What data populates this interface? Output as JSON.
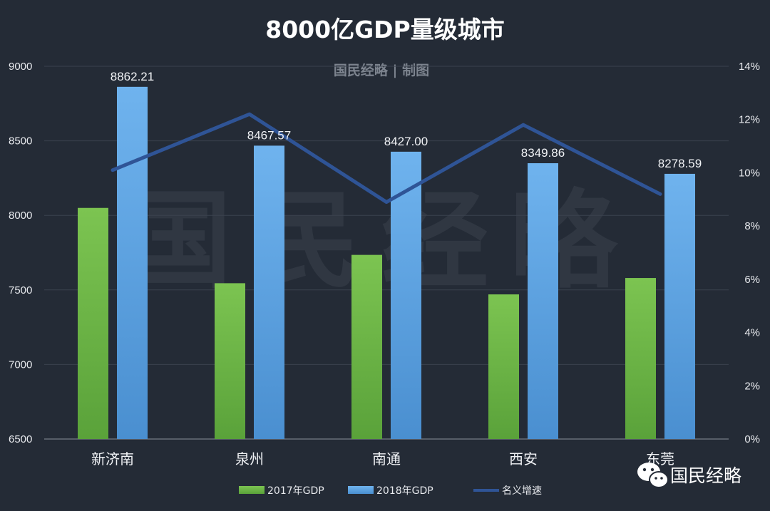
{
  "title": "8000亿GDP量级城市",
  "watermark": {
    "subtitle": "国民经略 | 制图",
    "big": "国民经略"
  },
  "brand": {
    "name": "国民经略",
    "icon": "wechat-icon"
  },
  "colors": {
    "background": "#242b36",
    "gdp2017": "#6ab544",
    "gdp2018": "#5aa3e2",
    "growth": "#2f5496",
    "gridline": "#3a424e"
  },
  "chart_data": {
    "type": "bar",
    "categories": [
      "新济南",
      "泉州",
      "南通",
      "西安",
      "东莞"
    ],
    "series": [
      {
        "name": "2017年GDP",
        "type": "bar",
        "axis": "left",
        "values": [
          8050,
          7545,
          7735,
          7470,
          7580
        ]
      },
      {
        "name": "2018年GDP",
        "type": "bar",
        "axis": "left",
        "values": [
          8862.21,
          8467.57,
          8427.0,
          8349.86,
          8278.59
        ]
      },
      {
        "name": "名义增速",
        "type": "line",
        "axis": "right",
        "values": [
          10.1,
          12.2,
          8.9,
          11.8,
          9.2
        ]
      }
    ],
    "data_labels": [
      "8862.21",
      "8467.57",
      "8427.00",
      "8349.86",
      "8278.59"
    ],
    "left_axis": {
      "min": 6500,
      "max": 9000,
      "step": 500,
      "ticks": [
        "6500",
        "7000",
        "7500",
        "8000",
        "8500",
        "9000"
      ]
    },
    "right_axis": {
      "min": 0,
      "max": 14,
      "step": 2,
      "ticks": [
        "0%",
        "2%",
        "4%",
        "6%",
        "8%",
        "10%",
        "12%",
        "14%"
      ]
    },
    "legend_position": "bottom",
    "grid": true
  }
}
